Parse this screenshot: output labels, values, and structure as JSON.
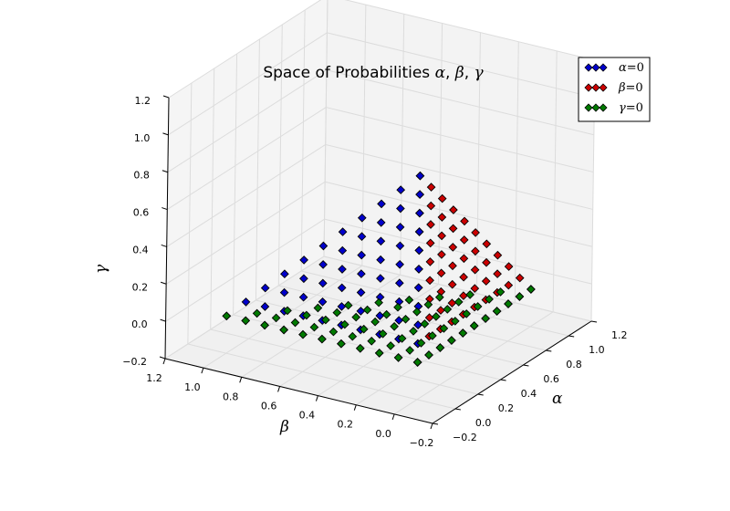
{
  "chart_data": {
    "type": "scatter",
    "projection": "3d",
    "title": "Space of Probabilities",
    "title_symbols": [
      "α",
      "β",
      "γ"
    ],
    "xlabel": "α",
    "ylabel": "β",
    "zlabel": "γ",
    "xlim": [
      -0.2,
      1.2
    ],
    "ylim": [
      -0.2,
      1.2
    ],
    "zlim": [
      -0.2,
      1.2
    ],
    "x_ticks": [
      "−0.2",
      "0.0",
      "0.2",
      "0.4",
      "0.6",
      "0.8",
      "1.0",
      "1.2"
    ],
    "y_ticks": [
      "−0.2",
      "0.0",
      "0.2",
      "0.4",
      "0.6",
      "0.8",
      "1.0",
      "1.2"
    ],
    "z_ticks": [
      "−0.2",
      "0.0",
      "0.2",
      "0.4",
      "0.6",
      "0.8",
      "1.0",
      "1.2"
    ],
    "grid": true,
    "marker": "diamond",
    "step": 0.1,
    "legend_position": "top-right",
    "series": [
      {
        "name": "α=0",
        "label_var": "α",
        "fixed_axis": "x",
        "color": "#0000cc"
      },
      {
        "name": "β=0",
        "label_var": "β",
        "fixed_axis": "y",
        "color": "#cc0000"
      },
      {
        "name": "γ=0",
        "label_var": "γ",
        "fixed_axis": "z",
        "color": "#007a00"
      }
    ],
    "legend_equals": "=0"
  }
}
